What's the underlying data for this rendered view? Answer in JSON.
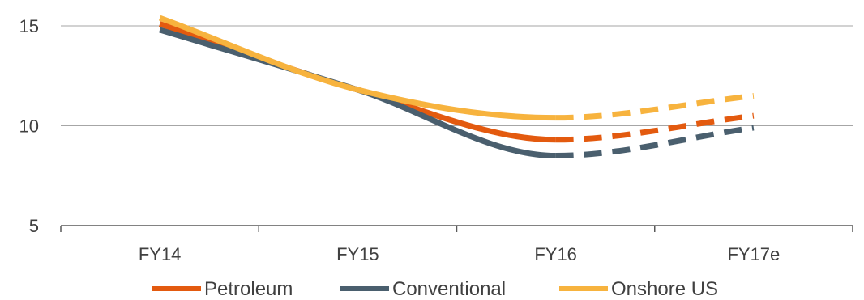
{
  "chart_data": {
    "type": "line",
    "categories": [
      "FY14",
      "FY15",
      "FY16",
      "FY17e"
    ],
    "ylim": [
      5,
      15
    ],
    "yticks": [
      5,
      10,
      15
    ],
    "grid": true,
    "legend_position": "bottom",
    "note": "Values from FY16 to FY17e drawn dashed (estimate)",
    "series": [
      {
        "name": "Petroleum",
        "color": "#e35a0f",
        "values": [
          15.1,
          11.8,
          9.3,
          10.5
        ]
      },
      {
        "name": "Conventional",
        "color": "#4a5f6e",
        "values": [
          14.8,
          11.8,
          8.5,
          9.9
        ]
      },
      {
        "name": "Onshore US",
        "color": "#f7b33e",
        "values": [
          15.4,
          11.8,
          10.4,
          11.5
        ]
      }
    ]
  }
}
